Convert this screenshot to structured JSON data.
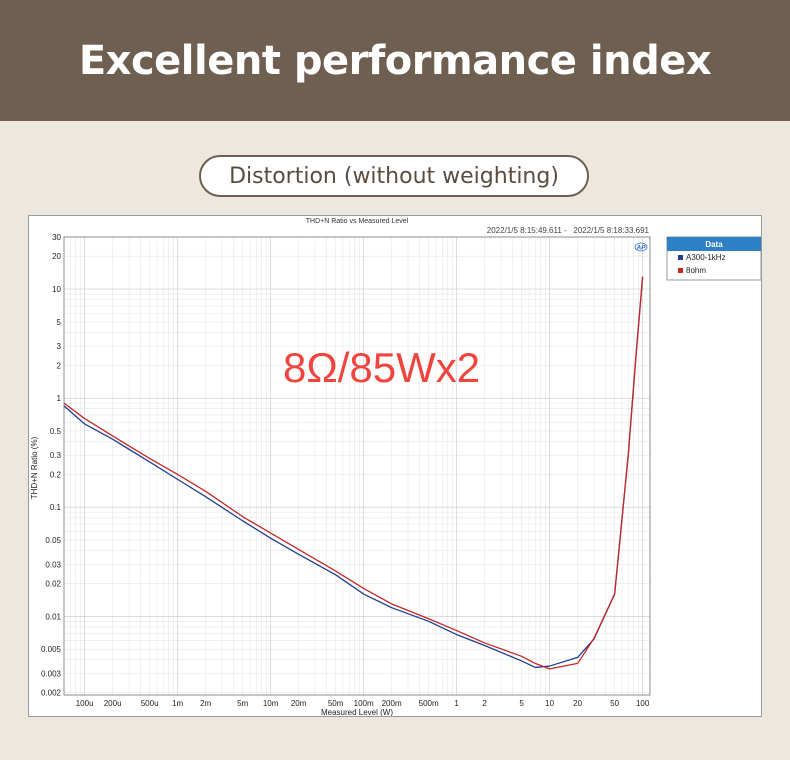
{
  "header": {
    "title": "Excellent performance index"
  },
  "subtitle_pill": {
    "label": "Distortion (without weighting)"
  },
  "chart_data": {
    "type": "line",
    "title": "THD+N Ratio vs Measured Level",
    "timestamp": "2022/1/5 8:15:49.611 -   2022/1/5 8:18:33.691",
    "annotation": "8Ω/85Wx2",
    "annotation_color": "#f0443e",
    "logo": "AP",
    "xlabel": "Measured Level (W)",
    "ylabel": "THD+N Ratio (%)",
    "x_scale": "log",
    "y_scale": "log",
    "xlim": [
      6e-05,
      120
    ],
    "ylim": [
      0.0019,
      30
    ],
    "grid": true,
    "x_ticks": [
      {
        "v": 0.0001,
        "label": "100u"
      },
      {
        "v": 0.0002,
        "label": "200u"
      },
      {
        "v": 0.0005,
        "label": "500u"
      },
      {
        "v": 0.001,
        "label": "1m"
      },
      {
        "v": 0.002,
        "label": "2m"
      },
      {
        "v": 0.005,
        "label": "5m"
      },
      {
        "v": 0.01,
        "label": "10m"
      },
      {
        "v": 0.02,
        "label": "20m"
      },
      {
        "v": 0.05,
        "label": "50m"
      },
      {
        "v": 0.1,
        "label": "100m"
      },
      {
        "v": 0.2,
        "label": "200m"
      },
      {
        "v": 0.5,
        "label": "500m"
      },
      {
        "v": 1,
        "label": "1"
      },
      {
        "v": 2,
        "label": "2"
      },
      {
        "v": 5,
        "label": "5"
      },
      {
        "v": 10,
        "label": "10"
      },
      {
        "v": 20,
        "label": "20"
      },
      {
        "v": 50,
        "label": "50"
      },
      {
        "v": 100,
        "label": "100"
      }
    ],
    "y_ticks": [
      {
        "v": 30,
        "label": "30"
      },
      {
        "v": 20,
        "label": "20"
      },
      {
        "v": 10,
        "label": "10"
      },
      {
        "v": 5,
        "label": "5"
      },
      {
        "v": 3,
        "label": "3"
      },
      {
        "v": 2,
        "label": "2"
      },
      {
        "v": 1,
        "label": "1"
      },
      {
        "v": 0.5,
        "label": "0.5"
      },
      {
        "v": 0.3,
        "label": "0.3"
      },
      {
        "v": 0.2,
        "label": "0.2"
      },
      {
        "v": 0.1,
        "label": "0.1"
      },
      {
        "v": 0.05,
        "label": "0.05"
      },
      {
        "v": 0.03,
        "label": "0.03"
      },
      {
        "v": 0.02,
        "label": "0.02"
      },
      {
        "v": 0.01,
        "label": "0.01"
      },
      {
        "v": 0.005,
        "label": "0.005"
      },
      {
        "v": 0.003,
        "label": "0.003"
      },
      {
        "v": 0.002,
        "label": "0.002"
      }
    ],
    "legend": {
      "title": "Data",
      "placement": "right",
      "title_bg": "#2e7fc4"
    },
    "series": [
      {
        "name": "A300-1kHz",
        "color": "#1f3f8f",
        "points": [
          [
            6e-05,
            0.85
          ],
          [
            0.0001,
            0.58
          ],
          [
            0.0002,
            0.42
          ],
          [
            0.0005,
            0.26
          ],
          [
            0.001,
            0.18
          ],
          [
            0.002,
            0.125
          ],
          [
            0.005,
            0.075
          ],
          [
            0.01,
            0.052
          ],
          [
            0.02,
            0.037
          ],
          [
            0.05,
            0.024
          ],
          [
            0.1,
            0.016
          ],
          [
            0.2,
            0.012
          ],
          [
            0.5,
            0.009
          ],
          [
            1,
            0.0068
          ],
          [
            2,
            0.0054
          ],
          [
            5,
            0.0039
          ],
          [
            7,
            0.0034
          ],
          [
            10,
            0.0035
          ],
          [
            20,
            0.0042
          ],
          [
            30,
            0.0062
          ],
          [
            50,
            0.016
          ],
          [
            70,
            0.3
          ],
          [
            85,
            2.5
          ],
          [
            100,
            13
          ]
        ]
      },
      {
        "name": "8ohm",
        "color": "#c42828",
        "points": [
          [
            6e-05,
            0.9
          ],
          [
            0.0001,
            0.65
          ],
          [
            0.0002,
            0.45
          ],
          [
            0.0005,
            0.28
          ],
          [
            0.001,
            0.2
          ],
          [
            0.002,
            0.14
          ],
          [
            0.005,
            0.082
          ],
          [
            0.01,
            0.058
          ],
          [
            0.02,
            0.041
          ],
          [
            0.05,
            0.026
          ],
          [
            0.1,
            0.018
          ],
          [
            0.2,
            0.013
          ],
          [
            0.5,
            0.0095
          ],
          [
            1,
            0.0074
          ],
          [
            2,
            0.0057
          ],
          [
            5,
            0.0043
          ],
          [
            7,
            0.0037
          ],
          [
            10,
            0.0033
          ],
          [
            20,
            0.0037
          ],
          [
            30,
            0.0063
          ],
          [
            50,
            0.016
          ],
          [
            70,
            0.3
          ],
          [
            85,
            2.5
          ],
          [
            100,
            13
          ]
        ]
      }
    ]
  }
}
